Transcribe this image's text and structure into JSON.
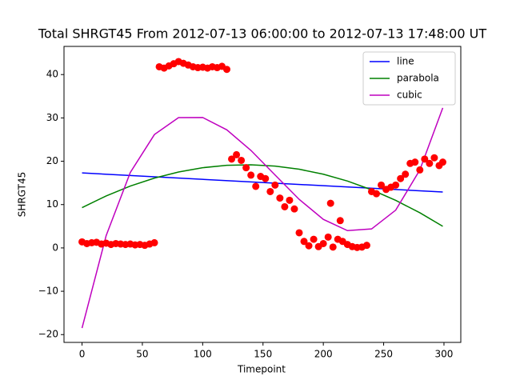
{
  "chart_data": {
    "type": "scatter",
    "title": "Total SHRGT45 From 2012-07-13 06:00:00 to 2012-07-13 17:48:00 UT",
    "x_label": "Timepoint",
    "y_label": "SHRGT45",
    "xlim": [
      -14.95,
      313.95
    ],
    "ylim": [
      -21.8,
      46.5
    ],
    "xticks": [
      0,
      50,
      100,
      150,
      200,
      250,
      300
    ],
    "yticks": [
      {
        "value": -20,
        "label": "−20"
      },
      {
        "value": -10,
        "label": "−10"
      },
      0,
      10,
      20,
      30,
      40
    ],
    "legend": "upper right",
    "points": {
      "color": "#ff0000",
      "x": [
        0,
        4,
        8,
        12,
        16,
        20,
        24,
        28,
        32,
        36,
        40,
        44,
        48,
        52,
        56,
        60,
        64,
        68,
        72,
        76,
        80,
        84,
        88,
        92,
        96,
        100,
        104,
        108,
        112,
        116,
        120,
        124,
        128,
        132,
        136,
        140,
        144,
        148,
        152,
        156,
        160,
        164,
        168,
        172,
        176,
        180,
        184,
        188,
        192,
        196,
        200,
        204,
        206,
        208,
        212,
        214,
        216,
        220,
        224,
        228,
        232,
        236,
        240,
        244,
        248,
        252,
        256,
        260,
        264,
        268,
        272,
        276,
        280,
        284,
        288,
        292,
        296,
        299
      ],
      "values": [
        1.4,
        1.0,
        1.2,
        1.3,
        0.9,
        1.1,
        0.8,
        1.0,
        0.9,
        0.8,
        0.9,
        0.7,
        0.8,
        0.6,
        0.9,
        1.2,
        41.8,
        41.5,
        42.0,
        42.5,
        43.0,
        42.6,
        42.2,
        41.8,
        41.6,
        41.7,
        41.5,
        41.8,
        41.6,
        41.9,
        41.2,
        20.5,
        21.5,
        20.2,
        18.5,
        16.8,
        14.2,
        16.5,
        16.0,
        13.0,
        14.5,
        11.5,
        9.5,
        11.0,
        9.0,
        3.5,
        1.5,
        0.5,
        2.0,
        0.3,
        1.0,
        2.5,
        10.3,
        0.2,
        2.0,
        6.3,
        1.5,
        0.8,
        0.3,
        0.1,
        0.2,
        0.6,
        13.0,
        12.5,
        14.5,
        13.5,
        14.0,
        14.5,
        16.0,
        17.0,
        19.5,
        19.8,
        18.0,
        20.5,
        19.5,
        20.8,
        19.0,
        19.8
      ]
    },
    "series": [
      {
        "name": "line",
        "color": "#0000ff",
        "x": [
          0,
          299
        ],
        "values": [
          17.3,
          12.9
        ]
      },
      {
        "name": "parabola",
        "color": "#008000",
        "x": [
          0,
          20,
          40,
          60,
          80,
          100,
          120,
          140,
          160,
          180,
          200,
          220,
          240,
          260,
          280,
          299
        ],
        "values": [
          9.3,
          12.0,
          14.27,
          16.11,
          17.52,
          18.51,
          19.06,
          19.19,
          18.89,
          18.16,
          17.01,
          15.43,
          13.41,
          10.97,
          8.11,
          4.99
        ]
      },
      {
        "name": "cubic",
        "color": "#bf00bf",
        "x": [
          0,
          20,
          40,
          60,
          80,
          100,
          120,
          140,
          160,
          180,
          200,
          220,
          240,
          260,
          280,
          299
        ],
        "values": [
          -18.5,
          2.85,
          17.41,
          26.16,
          30.06,
          30.1,
          27.25,
          22.5,
          16.83,
          11.2,
          6.59,
          3.99,
          4.38,
          8.72,
          18.0,
          32.3
        ]
      }
    ]
  }
}
